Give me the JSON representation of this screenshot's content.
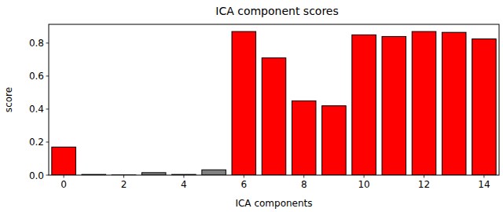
{
  "chart_data": {
    "type": "bar",
    "title": "ICA component scores",
    "x_label": "ICA components",
    "y_label": "score",
    "x": [
      0,
      1,
      2,
      3,
      4,
      5,
      6,
      7,
      8,
      9,
      10,
      11,
      12,
      13,
      14
    ],
    "values": [
      0.17,
      0.004,
      0.001,
      0.015,
      0.004,
      0.032,
      0.87,
      0.71,
      0.45,
      0.42,
      0.85,
      0.84,
      0.87,
      0.865,
      0.825
    ],
    "colors": [
      "red",
      "gray",
      "gray",
      "gray",
      "gray",
      "gray",
      "red",
      "red",
      "red",
      "red",
      "red",
      "red",
      "red",
      "red",
      "red"
    ],
    "xlim": [
      -0.5,
      14.5
    ],
    "ylim": [
      0,
      0.9135
    ],
    "xticks": [
      0,
      2,
      4,
      6,
      8,
      10,
      12,
      14
    ],
    "yticks": [
      {
        "value": 0,
        "label": "0.0"
      },
      {
        "value": 0.2,
        "label": "0.2"
      },
      {
        "value": 0.4,
        "label": "0.4"
      },
      {
        "value": 0.6,
        "label": "0.6"
      },
      {
        "value": 0.8,
        "label": "0.8"
      }
    ],
    "grid": false
  }
}
